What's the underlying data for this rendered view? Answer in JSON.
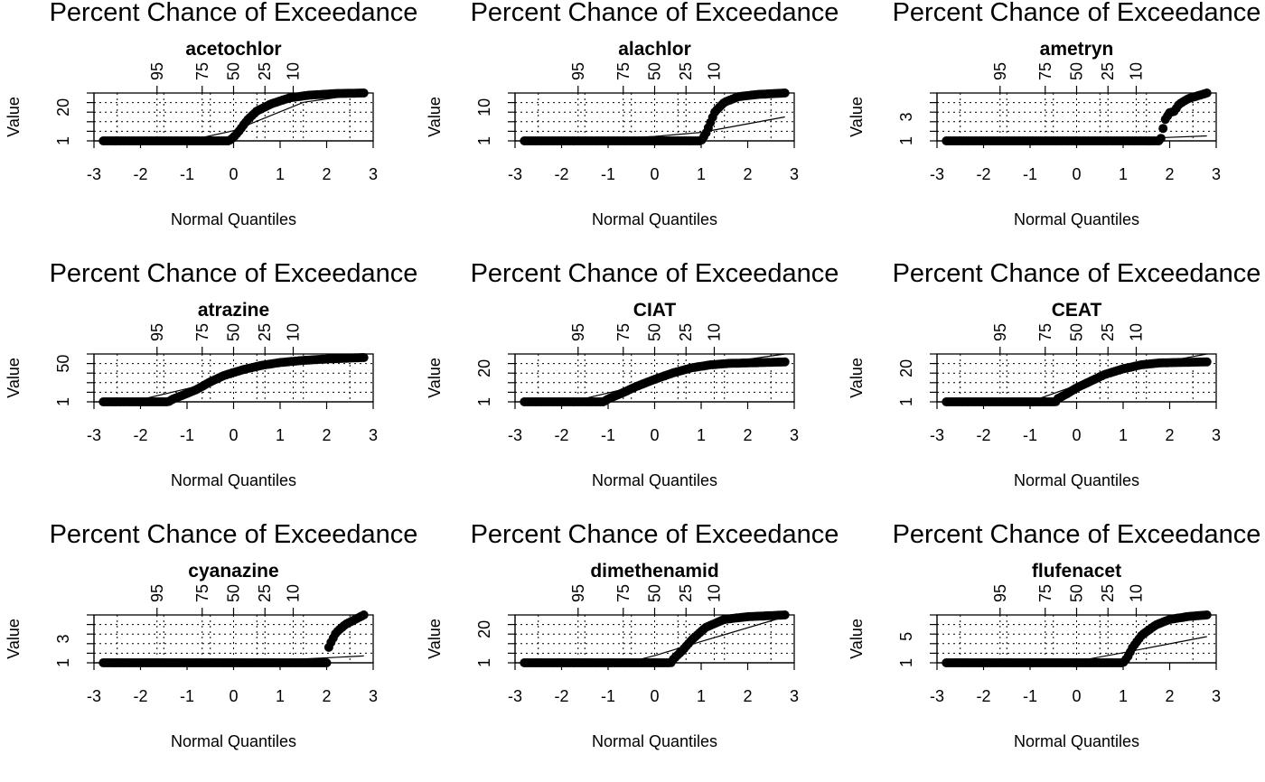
{
  "chart_data": [
    {
      "type": "scatter",
      "title": "acetochlor",
      "top_axis_label": "Percent Chance of Exceedance",
      "xlabel": "Normal Quantiles",
      "ylabel": "Value",
      "xlim": [
        -3,
        3
      ],
      "x_ticks": [
        -3,
        -2,
        -1,
        0,
        1,
        2,
        3
      ],
      "x_tick_labels": [
        "-3",
        "-2",
        "-1",
        "0",
        "1",
        "2",
        "3"
      ],
      "top_ticks": [
        95,
        75,
        50,
        25,
        10
      ],
      "y_tick_labels": [
        "1",
        "20"
      ],
      "fit": [
        [
          -1.0,
          1.0
        ],
        [
          0.0,
          6.8
        ],
        [
          1.5,
          23.0
        ],
        [
          2.8,
          28.0
        ]
      ],
      "curve": [
        [
          -2.8,
          1.0
        ],
        [
          -2.3,
          1.0
        ],
        [
          -1.6,
          1.0
        ],
        [
          -0.9,
          1.0
        ],
        [
          -0.1,
          1.0
        ],
        [
          0.0,
          3.0
        ],
        [
          0.1,
          6.0
        ],
        [
          0.3,
          13.0
        ],
        [
          0.5,
          18.0
        ],
        [
          0.8,
          22.0
        ],
        [
          1.2,
          25.5
        ],
        [
          1.6,
          27.0
        ],
        [
          2.2,
          28.0
        ],
        [
          2.8,
          28.3
        ]
      ]
    },
    {
      "type": "scatter",
      "title": "alachlor",
      "top_axis_label": "Percent Chance of Exceedance",
      "xlabel": "Normal Quantiles",
      "ylabel": "Value",
      "xlim": [
        -3,
        3
      ],
      "x_ticks": [
        -3,
        -2,
        -1,
        0,
        1,
        2,
        3
      ],
      "x_tick_labels": [
        "-3",
        "-2",
        "-1",
        "0",
        "1",
        "2",
        "3"
      ],
      "top_ticks": [
        95,
        75,
        50,
        25,
        10
      ],
      "y_tick_labels": [
        "1",
        "10"
      ],
      "fit": [
        [
          -2.0,
          1.0
        ],
        [
          0.0,
          2.2
        ],
        [
          1.0,
          3.3
        ],
        [
          2.8,
          7.5
        ]
      ],
      "curve": [
        [
          -2.8,
          1.0
        ],
        [
          -2.0,
          1.0
        ],
        [
          -1.0,
          1.0
        ],
        [
          0.0,
          1.0
        ],
        [
          1.0,
          1.0
        ],
        [
          1.1,
          3.0
        ],
        [
          1.2,
          6.0
        ],
        [
          1.3,
          9.0
        ],
        [
          1.5,
          11.5
        ],
        [
          1.8,
          13.0
        ],
        [
          2.2,
          13.6
        ],
        [
          2.8,
          14.0
        ]
      ]
    },
    {
      "type": "scatter",
      "title": "ametryn",
      "top_axis_label": "Percent Chance of Exceedance",
      "xlabel": "Normal Quantiles",
      "ylabel": "Value",
      "xlim": [
        -3,
        3
      ],
      "x_ticks": [
        -3,
        -2,
        -1,
        0,
        1,
        2,
        3
      ],
      "x_tick_labels": [
        "-3",
        "-2",
        "-1",
        "0",
        "1",
        "2",
        "3"
      ],
      "top_ticks": [
        95,
        75,
        50,
        25,
        10
      ],
      "y_tick_labels": [
        "1",
        "3"
      ],
      "fit": [
        [
          -2.0,
          1.0
        ],
        [
          0.0,
          1.06
        ],
        [
          1.0,
          1.12
        ],
        [
          2.8,
          1.35
        ]
      ],
      "curve": [
        [
          -2.8,
          1.0
        ],
        [
          -2.0,
          1.0
        ],
        [
          -1.0,
          1.0
        ],
        [
          0.0,
          1.0
        ],
        [
          1.0,
          1.0
        ],
        [
          1.8,
          1.0
        ],
        [
          1.9,
          2.5
        ],
        [
          2.0,
          3.0
        ],
        [
          2.1,
          3.1
        ],
        [
          2.2,
          3.6
        ],
        [
          2.4,
          4.0
        ],
        [
          2.8,
          4.4
        ]
      ]
    },
    {
      "type": "scatter",
      "title": "atrazine",
      "top_axis_label": "Percent Chance of Exceedance",
      "xlabel": "Normal Quantiles",
      "ylabel": "Value",
      "xlim": [
        -3,
        3
      ],
      "x_ticks": [
        -3,
        -2,
        -1,
        0,
        1,
        2,
        3
      ],
      "x_tick_labels": [
        "-3",
        "-2",
        "-1",
        "0",
        "1",
        "2",
        "3"
      ],
      "top_ticks": [
        95,
        75,
        50,
        25,
        10
      ],
      "y_tick_labels": [
        "1",
        "50"
      ],
      "fit": [
        [
          -2.2,
          1.0
        ],
        [
          -0.9,
          21.0
        ],
        [
          0.0,
          38.0
        ],
        [
          1.2,
          55.0
        ],
        [
          2.8,
          68.0
        ]
      ],
      "curve": [
        [
          -2.8,
          1.0
        ],
        [
          -2.0,
          1.0
        ],
        [
          -1.4,
          1.0
        ],
        [
          -1.3,
          5.0
        ],
        [
          -1.1,
          10.0
        ],
        [
          -0.8,
          18.0
        ],
        [
          -0.5,
          29.0
        ],
        [
          -0.2,
          38.0
        ],
        [
          0.2,
          46.0
        ],
        [
          0.6,
          52.0
        ],
        [
          1.0,
          56.0
        ],
        [
          1.5,
          59.0
        ],
        [
          2.0,
          61.0
        ],
        [
          2.8,
          63.0
        ]
      ]
    },
    {
      "type": "scatter",
      "title": "CIAT",
      "top_axis_label": "Percent Chance of Exceedance",
      "xlabel": "Normal Quantiles",
      "ylabel": "Value",
      "xlim": [
        -3,
        3
      ],
      "x_ticks": [
        -3,
        -2,
        -1,
        0,
        1,
        2,
        3
      ],
      "x_tick_labels": [
        "-3",
        "-2",
        "-1",
        "0",
        "1",
        "2",
        "3"
      ],
      "top_ticks": [
        95,
        75,
        50,
        25,
        10
      ],
      "y_tick_labels": [
        "1",
        "20"
      ],
      "fit": [
        [
          -1.8,
          1.0
        ],
        [
          -0.5,
          11.0
        ],
        [
          0.5,
          20.0
        ],
        [
          1.5,
          28.0
        ],
        [
          2.8,
          34.0
        ]
      ],
      "curve": [
        [
          -2.8,
          1.0
        ],
        [
          -2.0,
          1.0
        ],
        [
          -1.1,
          1.0
        ],
        [
          -1.0,
          3.0
        ],
        [
          -0.7,
          7.0
        ],
        [
          -0.4,
          11.5
        ],
        [
          0.0,
          16.5
        ],
        [
          0.4,
          21.0
        ],
        [
          0.8,
          24.5
        ],
        [
          1.2,
          26.5
        ],
        [
          1.6,
          27.5
        ],
        [
          2.2,
          28.0
        ],
        [
          2.8,
          28.5
        ]
      ]
    },
    {
      "type": "scatter",
      "title": "CEAT",
      "top_axis_label": "Percent Chance of Exceedance",
      "xlabel": "Normal Quantiles",
      "ylabel": "Value",
      "xlim": [
        -3,
        3
      ],
      "x_ticks": [
        -3,
        -2,
        -1,
        0,
        1,
        2,
        3
      ],
      "x_tick_labels": [
        "-3",
        "-2",
        "-1",
        "0",
        "1",
        "2",
        "3"
      ],
      "top_ticks": [
        95,
        75,
        50,
        25,
        10
      ],
      "y_tick_labels": [
        "1",
        "20"
      ],
      "fit": [
        [
          -1.0,
          1.0
        ],
        [
          0.0,
          11.0
        ],
        [
          1.0,
          20.5
        ],
        [
          2.8,
          30.0
        ]
      ],
      "curve": [
        [
          -2.8,
          1.0
        ],
        [
          -2.0,
          1.0
        ],
        [
          -1.0,
          1.0
        ],
        [
          -0.45,
          1.0
        ],
        [
          -0.4,
          3.0
        ],
        [
          -0.2,
          6.0
        ],
        [
          0.0,
          9.5
        ],
        [
          0.3,
          13.5
        ],
        [
          0.6,
          17.5
        ],
        [
          1.0,
          21.0
        ],
        [
          1.4,
          23.5
        ],
        [
          1.8,
          24.6
        ],
        [
          2.8,
          25.2
        ]
      ]
    },
    {
      "type": "scatter",
      "title": "cyanazine",
      "top_axis_label": "Percent Chance of Exceedance",
      "xlabel": "Normal Quantiles",
      "ylabel": "Value",
      "xlim": [
        -3,
        3
      ],
      "x_ticks": [
        -3,
        -2,
        -1,
        0,
        1,
        2,
        3
      ],
      "x_tick_labels": [
        "-3",
        "-2",
        "-1",
        "0",
        "1",
        "2",
        "3"
      ],
      "top_ticks": [
        95,
        75,
        50,
        25,
        10
      ],
      "y_tick_labels": [
        "1",
        "3"
      ],
      "fit": [
        [
          -2.0,
          1.0
        ],
        [
          0.0,
          1.05
        ],
        [
          1.0,
          1.2
        ],
        [
          2.8,
          1.5
        ]
      ],
      "curve": [
        [
          -2.8,
          1.0
        ],
        [
          -2.0,
          1.0
        ],
        [
          -1.0,
          1.0
        ],
        [
          0.0,
          1.0
        ],
        [
          1.0,
          1.0
        ],
        [
          2.0,
          1.0
        ],
        [
          2.05,
          2.2
        ],
        [
          2.2,
          3.2
        ],
        [
          2.4,
          3.8
        ],
        [
          2.8,
          4.5
        ]
      ]
    },
    {
      "type": "scatter",
      "title": "dimethenamid",
      "top_axis_label": "Percent Chance of Exceedance",
      "xlabel": "Normal Quantiles",
      "ylabel": "Value",
      "xlim": [
        -3,
        3
      ],
      "x_ticks": [
        -3,
        -2,
        -1,
        0,
        1,
        2,
        3
      ],
      "x_tick_labels": [
        "-3",
        "-2",
        "-1",
        "0",
        "1",
        "2",
        "3"
      ],
      "top_ticks": [
        95,
        75,
        50,
        25,
        10
      ],
      "y_tick_labels": [
        "1",
        "20"
      ],
      "fit": [
        [
          -0.6,
          1.0
        ],
        [
          0.0,
          5.0
        ],
        [
          1.0,
          13.0
        ],
        [
          2.8,
          27.0
        ]
      ],
      "curve": [
        [
          -2.8,
          1.0
        ],
        [
          -2.0,
          1.0
        ],
        [
          -1.0,
          1.0
        ],
        [
          0.0,
          1.0
        ],
        [
          0.35,
          1.0
        ],
        [
          0.4,
          3.0
        ],
        [
          0.6,
          8.0
        ],
        [
          0.8,
          14.0
        ],
        [
          1.1,
          21.0
        ],
        [
          1.5,
          25.5
        ],
        [
          2.0,
          27.0
        ],
        [
          2.8,
          28.0
        ]
      ]
    },
    {
      "type": "scatter",
      "title": "flufenacet",
      "top_axis_label": "Percent Chance of Exceedance",
      "xlabel": "Normal Quantiles",
      "ylabel": "Value",
      "xlim": [
        -3,
        3
      ],
      "x_ticks": [
        -3,
        -2,
        -1,
        0,
        1,
        2,
        3
      ],
      "x_tick_labels": [
        "-3",
        "-2",
        "-1",
        "0",
        "1",
        "2",
        "3"
      ],
      "top_ticks": [
        95,
        75,
        50,
        25,
        10
      ],
      "y_tick_labels": [
        "1",
        "5"
      ],
      "fit": [
        [
          -0.1,
          1.0
        ],
        [
          0.0,
          1.3
        ],
        [
          1.0,
          3.0
        ],
        [
          2.8,
          6.2
        ]
      ],
      "curve": [
        [
          -2.8,
          1.0
        ],
        [
          -2.0,
          1.0
        ],
        [
          -1.0,
          1.0
        ],
        [
          0.0,
          1.0
        ],
        [
          1.0,
          1.0
        ],
        [
          1.1,
          2.2
        ],
        [
          1.2,
          4.0
        ],
        [
          1.4,
          6.5
        ],
        [
          1.7,
          8.5
        ],
        [
          2.0,
          9.6
        ],
        [
          2.4,
          10.2
        ],
        [
          2.8,
          10.5
        ]
      ]
    }
  ]
}
